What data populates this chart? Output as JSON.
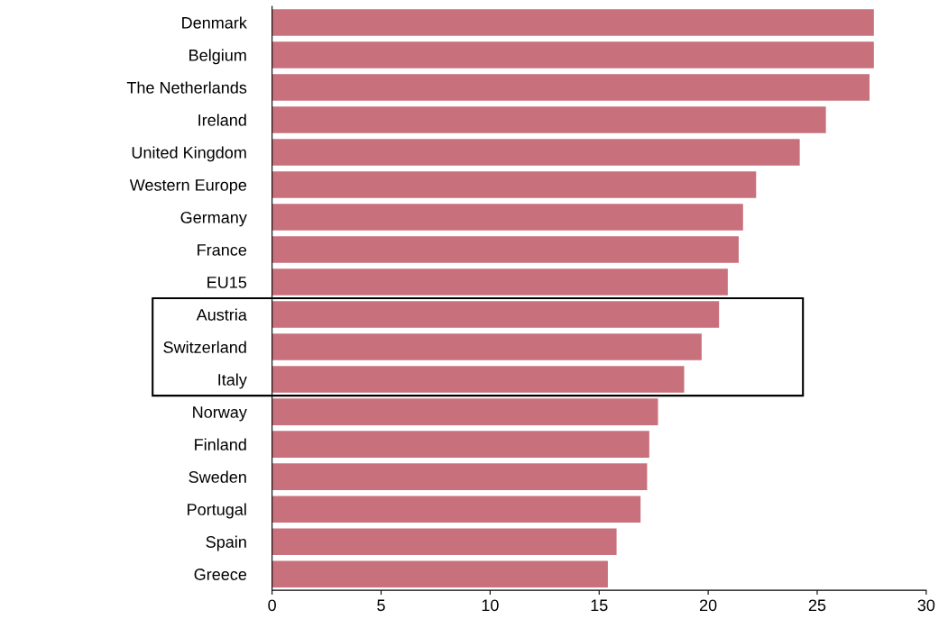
{
  "chart_data": {
    "type": "bar",
    "orientation": "horizontal",
    "categories": [
      "Denmark",
      "Belgium",
      "The Netherlands",
      "Ireland",
      "United Kingdom",
      "Western Europe",
      "Germany",
      "France",
      "EU15",
      "Austria",
      "Switzerland",
      "Italy",
      "Norway",
      "Finland",
      "Sweden",
      "Portugal",
      "Spain",
      "Greece"
    ],
    "values": [
      27.6,
      27.6,
      27.4,
      25.4,
      24.2,
      22.2,
      21.6,
      21.4,
      20.9,
      20.5,
      19.7,
      18.9,
      17.7,
      17.3,
      17.2,
      16.9,
      15.8,
      15.4
    ],
    "color": "#c8707c",
    "xlim": [
      0,
      30
    ],
    "xticks": [
      0,
      5,
      10,
      15,
      20,
      25,
      30
    ],
    "grid": false,
    "legend": false
  }
}
